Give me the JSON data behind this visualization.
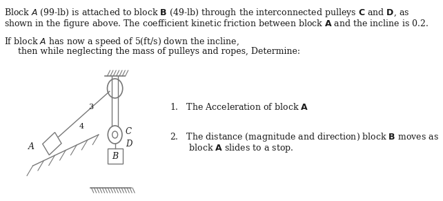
{
  "bg_color": "#ffffff",
  "text_color": "#1a1a1a",
  "diagram_color": "#777777",
  "fs_main": 9.0,
  "fs_small": 7.5,
  "label_3": "3",
  "label_4": "4",
  "label_A": "A",
  "label_B": "B",
  "label_C": "C",
  "label_D": "D",
  "line1": "Block $A$ (99-lb) is attached to block $\\mathbf{B}$ (49-lb) through the interconnected pulleys $\\mathbf{C}$ and $\\mathbf{D}$, as",
  "line2": "shown in the figure above. The coefficient kinetic friction between block $\\mathbf{A}$ and the incline is 0.2.",
  "line3": "If block $A$ has now a speed of 5(ft/s) down the incline,",
  "line4": "     then while neglecting the mass of pulleys and ropes, Determine:",
  "q1": "1.   The Acceleration of block $\\mathbf{A}$",
  "q2a": "2.   The distance (magnitude and direction) block $\\mathbf{B}$ moves as",
  "q2b": "       block $\\mathbf{A}$ slides to a stop."
}
